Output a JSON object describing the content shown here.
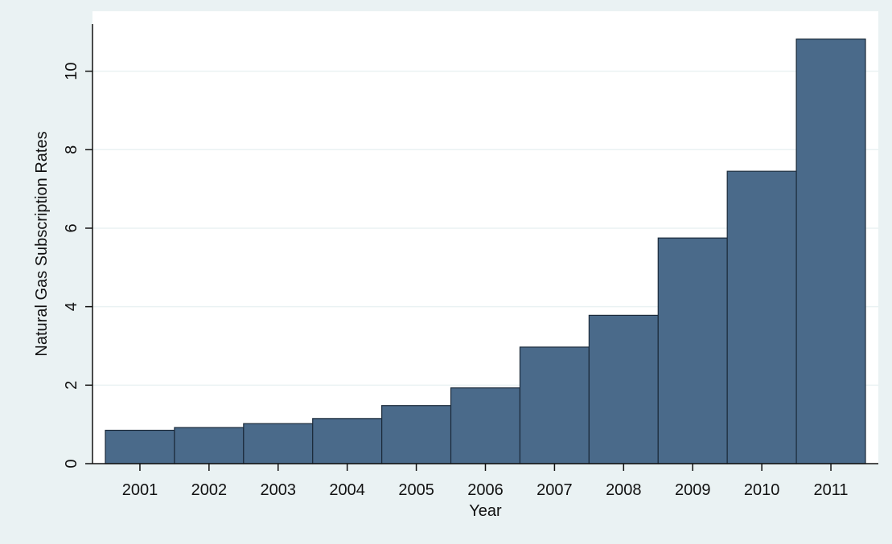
{
  "chart_data": {
    "type": "bar",
    "title": "",
    "xlabel": "Year",
    "ylabel": "Natural Gas Subscription Rates",
    "categories": [
      "2001",
      "2002",
      "2003",
      "2004",
      "2005",
      "2006",
      "2007",
      "2008",
      "2009",
      "2010",
      "2011"
    ],
    "values": [
      0.85,
      0.92,
      1.02,
      1.15,
      1.48,
      1.93,
      2.97,
      3.78,
      5.75,
      7.45,
      10.82
    ],
    "ylim": [
      0,
      11.2
    ],
    "yticks": [
      0,
      2,
      4,
      6,
      8,
      10
    ],
    "ytick_labels": [
      "0",
      "2",
      "4",
      "6",
      "8",
      "10"
    ],
    "grid": true,
    "legend": "none",
    "colors": {
      "background": "#eaf2f3",
      "plot_background": "#ffffff",
      "bar_fill": "#4a6a8a",
      "bar_edge": "#1b2a3a",
      "grid": "#eaf2f3",
      "axis": "#111111"
    }
  }
}
